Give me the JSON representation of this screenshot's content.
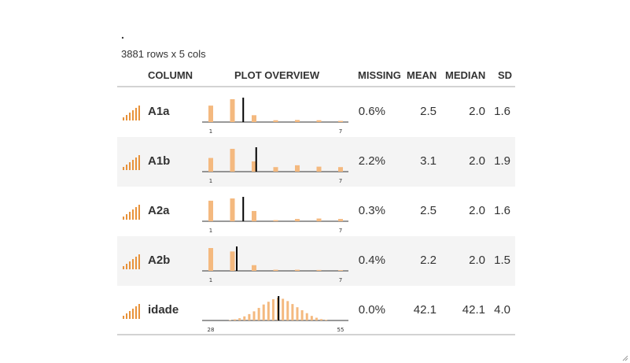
{
  "header": {
    "title": ".",
    "subtitle": "3881 rows x 5 cols"
  },
  "columns": {
    "column": "COLUMN",
    "plot": "PLOT OVERVIEW",
    "missing": "MISSING",
    "mean": "MEAN",
    "median": "MEDIAN",
    "sd": "SD"
  },
  "colors": {
    "bar": "#f4b97f",
    "icon": "#e8923a",
    "mean_line": "#000000"
  },
  "rows": [
    {
      "name": "A1a",
      "missing": "0.6%",
      "mean": "2.5",
      "median": "2.0",
      "sd": "1.6",
      "min_label": "1",
      "max_label": "7",
      "hist": [
        0.72,
        1.0,
        0.3,
        0.08,
        0.09,
        0.08,
        0.05
      ],
      "mean_value": 2.5,
      "range": [
        1,
        7
      ]
    },
    {
      "name": "A1b",
      "missing": "2.2%",
      "mean": "3.1",
      "median": "2.0",
      "sd": "1.9",
      "min_label": "1",
      "max_label": "7",
      "hist": [
        0.6,
        1.0,
        0.45,
        0.2,
        0.28,
        0.22,
        0.2
      ],
      "mean_value": 3.1,
      "range": [
        1,
        7
      ]
    },
    {
      "name": "A2a",
      "missing": "0.3%",
      "mean": "2.5",
      "median": "2.0",
      "sd": "1.6",
      "min_label": "1",
      "max_label": "7",
      "hist": [
        0.9,
        1.0,
        0.45,
        0.05,
        0.1,
        0.12,
        0.1
      ],
      "mean_value": 2.5,
      "range": [
        1,
        7
      ]
    },
    {
      "name": "A2b",
      "missing": "0.4%",
      "mean": "2.2",
      "median": "2.0",
      "sd": "1.5",
      "min_label": "1",
      "max_label": "7",
      "hist": [
        1.0,
        0.85,
        0.25,
        0.05,
        0.05,
        0.04,
        0.03
      ],
      "mean_value": 2.2,
      "range": [
        1,
        7
      ]
    },
    {
      "name": "idade",
      "missing": "0.0%",
      "mean": "42.1",
      "median": "42.1",
      "sd": "4.0",
      "min_label": "28",
      "max_label": "55",
      "hist": [
        0.02,
        0.05,
        0.1,
        0.18,
        0.28,
        0.4,
        0.55,
        0.7,
        0.82,
        0.93,
        1.0,
        0.95,
        0.85,
        0.72,
        0.58,
        0.45,
        0.32,
        0.2,
        0.12,
        0.06,
        0.03
      ],
      "hist_start": 32,
      "mean_value": 42.1,
      "range": [
        28,
        55
      ]
    }
  ]
}
